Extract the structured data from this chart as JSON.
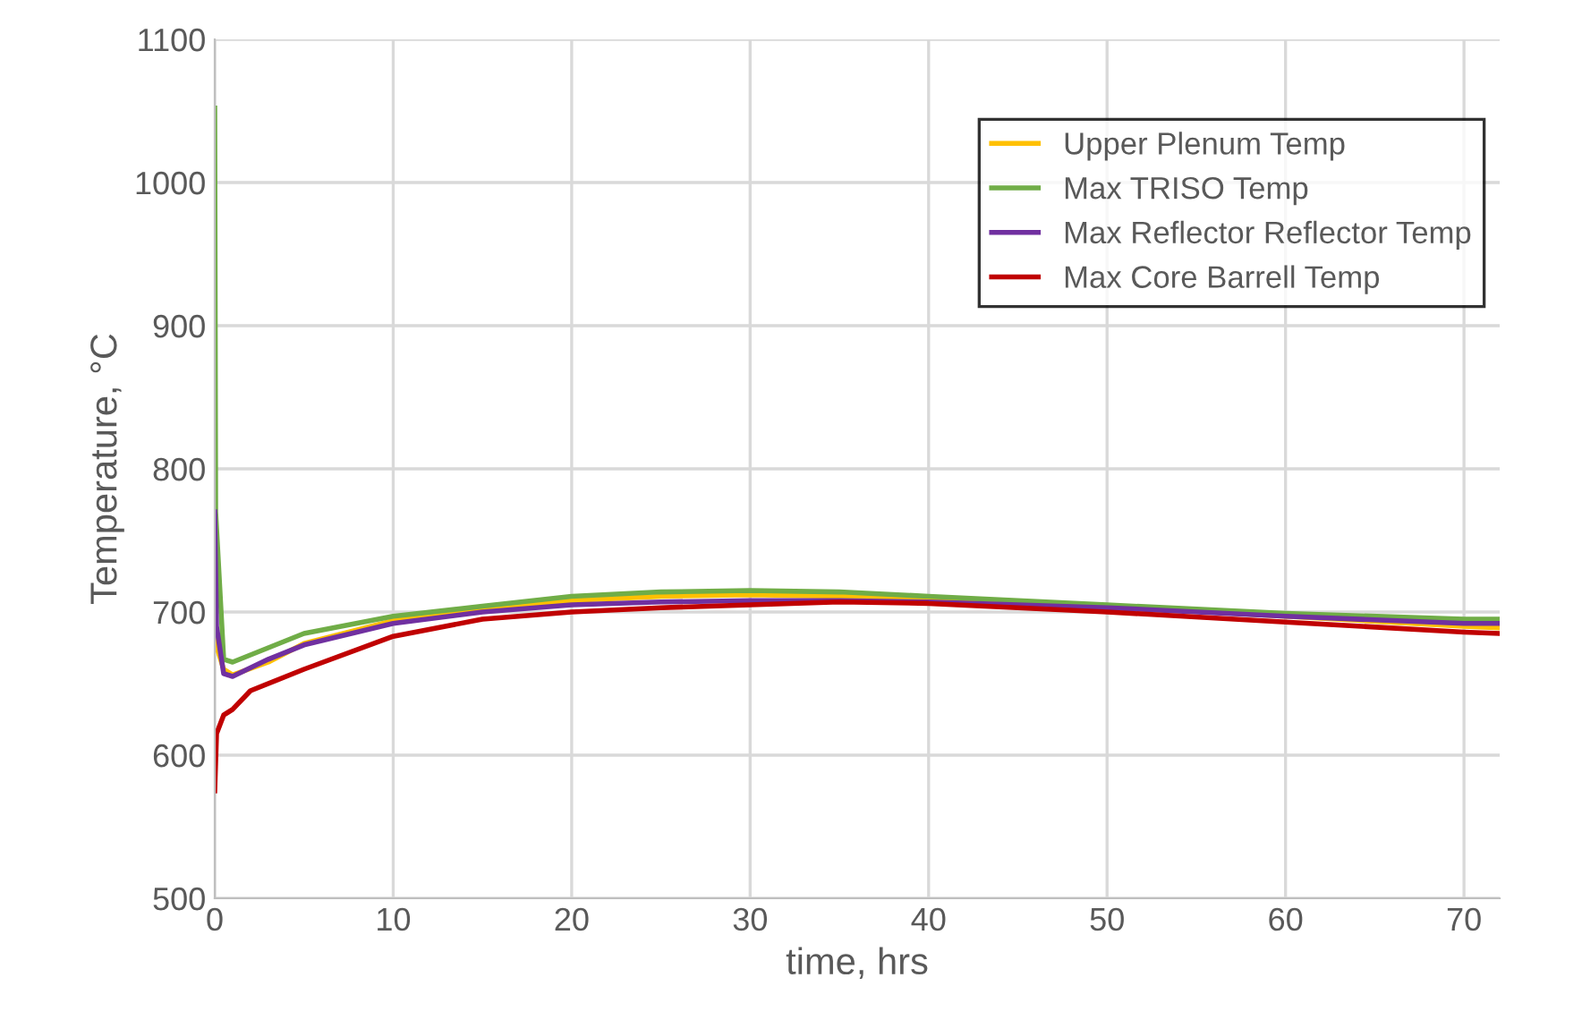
{
  "chart_data": {
    "type": "line",
    "xlabel": "time, hrs",
    "ylabel": "Temperature, °C",
    "xlim": [
      0,
      72
    ],
    "ylim": [
      500,
      1100
    ],
    "xticks": [
      0,
      10,
      20,
      30,
      40,
      50,
      60,
      70
    ],
    "yticks": [
      500,
      600,
      700,
      800,
      900,
      1000,
      1100
    ],
    "grid": true,
    "legend": "top right",
    "marker": "none",
    "line_style": "solid",
    "series": [
      {
        "name": "Upper Plenum Temp",
        "color": "#ffc000",
        "x": [
          0,
          0.5,
          1,
          3,
          5,
          10,
          15,
          20,
          25,
          30,
          35,
          40,
          50,
          60,
          70,
          72
        ],
        "values": [
          680,
          660,
          656,
          665,
          678,
          694,
          702,
          708,
          711,
          712,
          711,
          710,
          704,
          697,
          690,
          689
        ]
      },
      {
        "name": "Max TRISO Temp",
        "color": "#70ad47",
        "x": [
          0,
          0.05,
          0.5,
          1,
          3,
          5,
          10,
          15,
          20,
          25,
          30,
          35,
          40,
          50,
          60,
          70,
          72
        ],
        "values": [
          1052,
          770,
          667,
          665,
          675,
          685,
          697,
          704,
          711,
          714,
          715,
          714,
          711,
          705,
          699,
          695,
          695
        ]
      },
      {
        "name": "Max Reflector Reflector Temp",
        "color": "#7030a0",
        "x": [
          0,
          0.1,
          0.5,
          1,
          3,
          5,
          10,
          15,
          20,
          25,
          30,
          35,
          40,
          50,
          60,
          70,
          72
        ],
        "values": [
          770,
          690,
          657,
          655,
          667,
          677,
          692,
          700,
          705,
          707,
          708,
          708,
          707,
          703,
          697,
          692,
          692
        ]
      },
      {
        "name": "Max Core Barrell Temp",
        "color": "#c00000",
        "x": [
          0,
          0.1,
          0.5,
          1,
          2,
          5,
          10,
          15,
          20,
          25,
          30,
          35,
          40,
          50,
          60,
          70,
          72
        ],
        "values": [
          575,
          615,
          628,
          632,
          645,
          660,
          683,
          695,
          700,
          703,
          705,
          707,
          706,
          700,
          693,
          686,
          685
        ]
      }
    ]
  }
}
